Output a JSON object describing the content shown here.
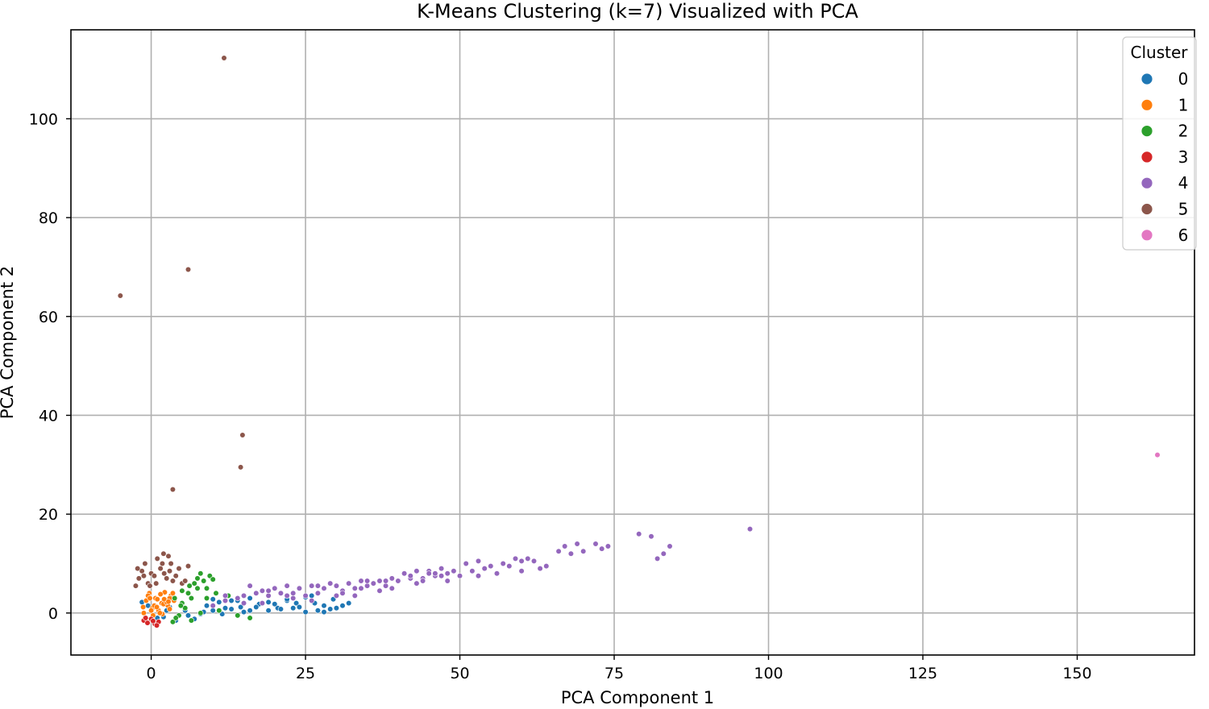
{
  "chart_data": {
    "type": "scatter",
    "title": "K-Means Clustering (k=7) Visualized with PCA",
    "xlabel": "PCA Component 1",
    "ylabel": "PCA Component 2",
    "xlim": [
      -13,
      169
    ],
    "ylim": [
      -8.5,
      118
    ],
    "xticks": [
      0,
      25,
      50,
      75,
      100,
      125,
      150
    ],
    "yticks": [
      0,
      20,
      40,
      60,
      80,
      100
    ],
    "grid": true,
    "legend": {
      "title": "Cluster",
      "placement": "top-right",
      "entries": [
        "0",
        "1",
        "2",
        "3",
        "4",
        "5",
        "6"
      ]
    },
    "series": [
      {
        "name": "0",
        "color": "#1f77b4",
        "x": [
          -1.5,
          -0.5,
          1,
          2.5,
          4,
          5.5,
          7,
          8.5,
          10,
          11.5,
          13,
          14.5,
          16,
          17.5,
          19,
          20.5,
          22,
          23.5,
          25,
          26.5,
          28,
          29.5,
          31,
          3,
          6,
          9,
          12,
          15,
          18,
          21,
          24,
          27,
          30,
          2,
          5,
          8,
          11,
          14,
          17,
          20,
          23,
          26,
          29,
          32,
          10,
          13,
          16,
          19,
          22,
          25,
          28
        ],
        "y": [
          2.2,
          1.5,
          -1,
          0.5,
          -1.5,
          0.5,
          -1.2,
          0.2,
          0.5,
          -0.2,
          0.8,
          1.2,
          0.5,
          1.8,
          2.2,
          1,
          2.5,
          2,
          3.2,
          2,
          1.5,
          2.8,
          1.5,
          1.2,
          -0.5,
          1.5,
          1,
          0.2,
          2,
          0.8,
          1.2,
          0.5,
          1,
          -0.8,
          2,
          -0.2,
          2.2,
          2.5,
          1.2,
          1.8,
          1,
          3.5,
          0.8,
          2,
          2.8,
          2.5,
          3,
          0.5,
          2.8,
          0.2,
          0.2
        ]
      },
      {
        "name": "1",
        "color": "#ff7f0e",
        "x": [
          -1.2,
          -0.8,
          -0.3,
          0.2,
          0.7,
          1.2,
          1.7,
          2.2,
          2.7,
          3.2,
          3.7,
          -1,
          0,
          1,
          2,
          3,
          -0.5,
          0.5,
          1.5,
          2.5,
          3.5,
          -1.3,
          0.3,
          1.8,
          3,
          2.1,
          0.9,
          -0.2,
          1.4,
          2.8
        ],
        "y": [
          0,
          2.5,
          4,
          1,
          3,
          0.5,
          2,
          4.2,
          1.5,
          3.5,
          2.5,
          -1,
          0.5,
          2.8,
          1.8,
          0.8,
          3.5,
          1.5,
          3.8,
          2.2,
          4,
          1.2,
          -0.5,
          -0.2,
          3,
          2.8,
          1.2,
          3,
          0,
          2.3
        ]
      },
      {
        "name": "2",
        "color": "#2ca02c",
        "x": [
          3.5,
          4.5,
          5.5,
          6.5,
          7.5,
          8.5,
          9.5,
          10.5,
          4,
          5,
          6,
          7,
          8,
          9,
          10,
          11,
          12,
          5,
          6.5,
          8,
          9,
          7.5,
          16,
          14,
          12.5,
          3.8,
          4.8,
          6.2,
          10
        ],
        "y": [
          -1.8,
          -0.5,
          1,
          3,
          5,
          6.5,
          7.5,
          4,
          -1,
          2,
          4,
          6,
          8,
          3,
          1.5,
          0.5,
          2.5,
          4.5,
          -1.5,
          0,
          5,
          7,
          -1,
          -0.5,
          3.5,
          3,
          1.5,
          5.5,
          6.8
        ]
      },
      {
        "name": "3",
        "color": "#d62728",
        "x": [
          -1.2,
          -0.6,
          0,
          0.6,
          1.2,
          -0.9,
          0.3,
          0.9
        ],
        "y": [
          -1.5,
          -2,
          -1.2,
          -2.2,
          -1.8,
          -1,
          -1.6,
          -2.5
        ]
      },
      {
        "name": "4",
        "color": "#9467bd",
        "x": [
          10,
          12,
          14,
          15,
          16,
          17,
          18,
          19,
          20,
          21,
          22,
          23,
          24,
          25,
          26,
          27,
          28,
          29,
          30,
          31,
          32,
          33,
          34,
          35,
          36,
          37,
          38,
          39,
          40,
          41,
          42,
          43,
          44,
          45,
          46,
          47,
          48,
          49,
          50,
          51,
          52,
          53,
          54,
          55,
          56,
          57,
          58,
          59,
          60,
          61,
          62,
          63,
          64,
          66,
          67,
          68,
          69,
          70,
          72,
          73,
          74,
          79,
          81,
          82,
          83,
          84,
          97,
          12,
          15,
          19,
          23,
          27,
          31,
          35,
          39,
          43,
          47,
          26,
          30,
          34,
          38,
          42,
          46,
          18,
          22,
          33,
          37,
          44,
          45,
          48,
          53,
          60
        ],
        "y": [
          1.5,
          2.5,
          3,
          3.5,
          5.5,
          4,
          4.5,
          3.5,
          5,
          4,
          5.5,
          4,
          5,
          3.5,
          5.5,
          4,
          5,
          6,
          5.5,
          4.5,
          6,
          5,
          6.5,
          5.5,
          6,
          6.5,
          5.5,
          7,
          6.5,
          8,
          7,
          8.5,
          7,
          8.5,
          7.5,
          9,
          8,
          8.5,
          7.5,
          10,
          8.5,
          10.5,
          9,
          9.5,
          8,
          10,
          9.5,
          11,
          8.5,
          11,
          10.5,
          9,
          9.5,
          12.5,
          13.5,
          12,
          14,
          12.5,
          14,
          13,
          13.5,
          16,
          15.5,
          11,
          12,
          13.5,
          17,
          3.5,
          2,
          4.5,
          3,
          5.5,
          4,
          6.5,
          5,
          6,
          7.5,
          2.5,
          3.5,
          5,
          6.5,
          7.5,
          8,
          2,
          3.5,
          3.5,
          4.5,
          6.5,
          8,
          6.5,
          7.5,
          10.5
        ]
      },
      {
        "name": "5",
        "color": "#8c564b",
        "x": [
          -2.5,
          -2,
          -1.5,
          -1,
          -0.5,
          0,
          0.5,
          1,
          1.5,
          2,
          2.5,
          3,
          3.5,
          4,
          4.5,
          5,
          6,
          -2.2,
          -1.2,
          0.8,
          1.8,
          2.8,
          5.5,
          3.2,
          2.1,
          -0.2,
          11.8,
          6,
          -5,
          14.8,
          14.5,
          3.5
        ],
        "y": [
          5.5,
          7,
          8.5,
          10,
          6,
          8,
          7.5,
          11,
          9,
          12,
          7,
          8.5,
          6.5,
          7.5,
          9,
          6,
          9.5,
          9,
          7.5,
          6,
          10,
          11.5,
          6.5,
          10,
          8,
          5.5,
          112.3,
          69.5,
          64.2,
          36,
          29.5,
          25
        ]
      },
      {
        "name": "6",
        "color": "#e377c2",
        "x": [
          163
        ],
        "y": [
          32
        ]
      }
    ]
  }
}
